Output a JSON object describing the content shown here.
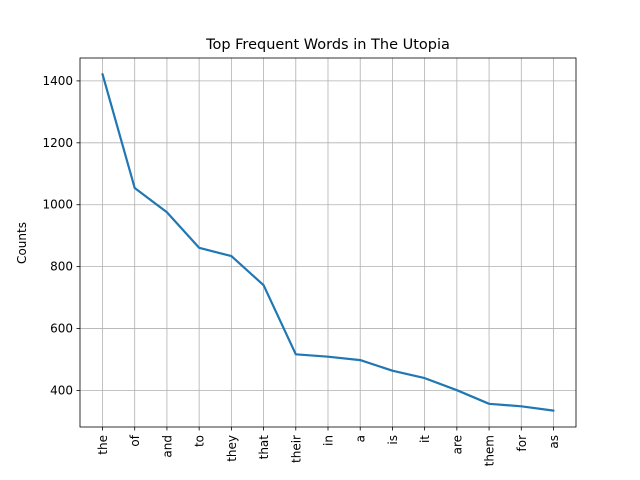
{
  "chart_data": {
    "type": "line",
    "title": "Top Frequent Words in The Utopia",
    "xlabel": "",
    "ylabel": "Counts",
    "categories": [
      "the",
      "of",
      "and",
      "to",
      "they",
      "that",
      "their",
      "in",
      "a",
      "is",
      "it",
      "are",
      "them",
      "for",
      "as"
    ],
    "series": [
      {
        "values": [
          1422,
          1054,
          976,
          861,
          834,
          740,
          517,
          509,
          498,
          464,
          440,
          401,
          357,
          349,
          335
        ]
      }
    ],
    "yticks": [
      400,
      600,
      800,
      1000,
      1200,
      1400
    ],
    "ylim": [
      282,
      1474
    ],
    "grid": true,
    "line_color": "#1f77b4"
  }
}
